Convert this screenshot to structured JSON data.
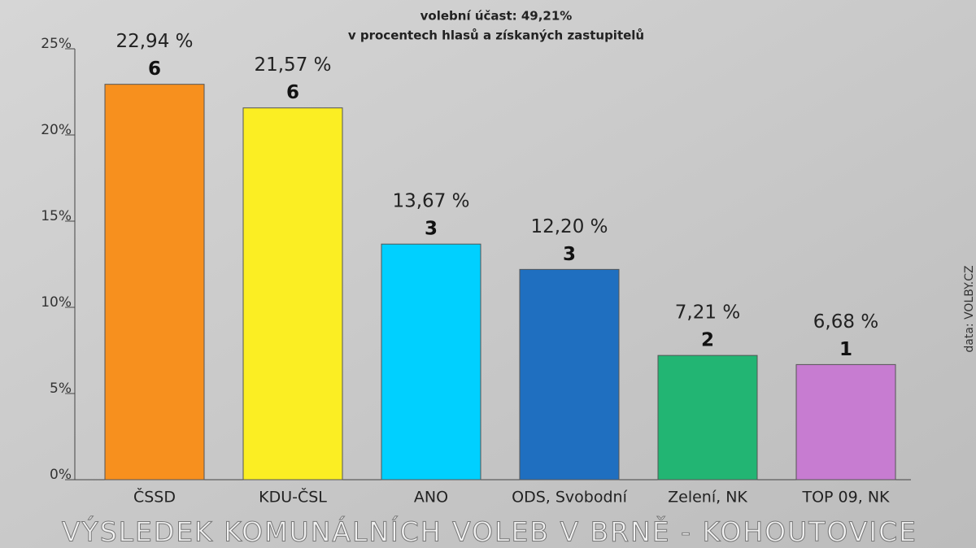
{
  "chart_data": {
    "type": "bar",
    "title": "volební účast: 49,21%",
    "subtitle": "v procentech hlasů a získaných zastupitelů",
    "footer_title": "VÝSLEDEK KOMUNÁLNÍCH VOLEB V BRNĚ - KOHOUTOVICE",
    "source": "data: VOLBY.CZ",
    "categories": [
      "ČSSD",
      "KDU-ČSL",
      "ANO",
      "ODS, Svobodní",
      "Zelení, NK",
      "TOP 09, NK"
    ],
    "values": [
      22.94,
      21.57,
      13.67,
      12.2,
      7.21,
      6.68
    ],
    "value_labels": [
      "22,94 %",
      "21,57 %",
      "13,67 %",
      "12,20 %",
      "7,21 %",
      "6,68 %"
    ],
    "seats": [
      6,
      6,
      3,
      3,
      2,
      1
    ],
    "colors": [
      "#f7901e",
      "#fbee23",
      "#00d0ff",
      "#1f6fc0",
      "#22b573",
      "#c77cd1"
    ],
    "ylim": [
      0,
      25
    ],
    "yticks": [
      {
        "value": 0,
        "label": "0%"
      },
      {
        "value": 5,
        "label": "5%"
      },
      {
        "value": 10,
        "label": "10%"
      },
      {
        "value": 15,
        "label": "15%"
      },
      {
        "value": 20,
        "label": "20%"
      },
      {
        "value": 25,
        "label": "25%"
      }
    ],
    "grid": false
  }
}
